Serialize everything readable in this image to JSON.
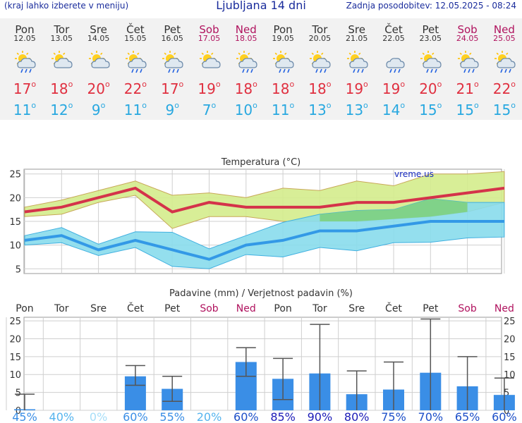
{
  "header": {
    "left": "(kraj lahko izberete v meniju)",
    "title": "Ljubljana 14 dni",
    "right": "Zadnja posodobitev: 12.05.2025 - 08:24"
  },
  "days": [
    {
      "name": "Pon",
      "date": "12.05",
      "weekend": false,
      "icon": "sun-cloud-rain",
      "tmax": "17",
      "tmin": "11"
    },
    {
      "name": "Tor",
      "date": "13.05",
      "weekend": false,
      "icon": "sun-cloud",
      "tmax": "18",
      "tmin": "12"
    },
    {
      "name": "Sre",
      "date": "14.05",
      "weekend": false,
      "icon": "sun-cloud",
      "tmax": "20",
      "tmin": "9"
    },
    {
      "name": "Čet",
      "date": "15.05",
      "weekend": false,
      "icon": "sun-cloud-rain",
      "tmax": "22",
      "tmin": "11"
    },
    {
      "name": "Pet",
      "date": "16.05",
      "weekend": false,
      "icon": "sun-cloud-rain",
      "tmax": "17",
      "tmin": "9"
    },
    {
      "name": "Sob",
      "date": "17.05",
      "weekend": true,
      "icon": "sun-cloud",
      "tmax": "19",
      "tmin": "7"
    },
    {
      "name": "Ned",
      "date": "18.05",
      "weekend": true,
      "icon": "sun-cloud-rain",
      "tmax": "18",
      "tmin": "10"
    },
    {
      "name": "Pon",
      "date": "19.05",
      "weekend": false,
      "icon": "sun-cloud-rain",
      "tmax": "18",
      "tmin": "11"
    },
    {
      "name": "Tor",
      "date": "20.05",
      "weekend": false,
      "icon": "sun-cloud-rain",
      "tmax": "18",
      "tmin": "13"
    },
    {
      "name": "Sre",
      "date": "21.05",
      "weekend": false,
      "icon": "sun-cloud-rain",
      "tmax": "19",
      "tmin": "13"
    },
    {
      "name": "Čet",
      "date": "22.05",
      "weekend": false,
      "icon": "cloud-rain",
      "tmax": "19",
      "tmin": "14"
    },
    {
      "name": "Pet",
      "date": "23.05",
      "weekend": false,
      "icon": "sun-cloud-rain",
      "tmax": "20",
      "tmin": "15"
    },
    {
      "name": "Sob",
      "date": "24.05",
      "weekend": true,
      "icon": "sun-cloud-rain",
      "tmax": "21",
      "tmin": "15"
    },
    {
      "name": "Ned",
      "date": "25.05",
      "weekend": true,
      "icon": "sun-cloud-rain",
      "tmax": "22",
      "tmin": "15"
    }
  ],
  "degree_symbol": "o",
  "colors": {
    "tmax": "#e03040",
    "tmin": "#28a8e0",
    "weekend": "#b0125e",
    "title": "#1a2c9c",
    "max_band": "#d4ec8c",
    "min_band": "#88dcec",
    "overlap_band": "#7ed07e",
    "bar": "#3a8ee6",
    "whisker": "#555555",
    "max_line": "#d4334a",
    "min_line": "#3399e6"
  },
  "chart_data": [
    {
      "type": "line",
      "title": "Temperatura (°C)",
      "watermark": "vreme.us",
      "categories": [
        "12.05",
        "13.05",
        "14.05",
        "15.05",
        "16.05",
        "17.05",
        "18.05",
        "19.05",
        "20.05",
        "21.05",
        "22.05",
        "23.05",
        "24.05",
        "25.05"
      ],
      "ylim": [
        4,
        26
      ],
      "yticks": [
        5,
        10,
        15,
        20,
        25
      ],
      "grid": true,
      "series": [
        {
          "values": [
            17,
            18,
            20,
            22,
            17,
            19,
            18,
            18,
            18,
            19,
            19,
            20,
            21,
            22
          ],
          "band_low": [
            16,
            16.5,
            19,
            20.5,
            13.5,
            16,
            16,
            15,
            15,
            15,
            15.5,
            16,
            17,
            19
          ],
          "band_high": [
            18,
            19.5,
            21.5,
            23.5,
            20.5,
            21,
            20,
            22,
            21.5,
            23.5,
            22.5,
            25,
            25,
            25.5
          ]
        },
        {
          "values": [
            11,
            12,
            9,
            11,
            9,
            7,
            10,
            11,
            13,
            13,
            14,
            15,
            15,
            15
          ],
          "band_low": [
            10,
            10.5,
            7.8,
            9.5,
            5.5,
            5,
            8,
            7.5,
            9.5,
            8.8,
            10.5,
            10.6,
            11.5,
            11.7
          ],
          "band_high": [
            12,
            13.7,
            10.2,
            12.8,
            12.7,
            9.2,
            12,
            14.8,
            16.5,
            17.3,
            17.5,
            19.8,
            19,
            19
          ]
        }
      ]
    },
    {
      "type": "bar",
      "title": "Padavine (mm) / Verjetnost padavin (%)",
      "categories": [
        "Pon",
        "Tor",
        "Sre",
        "Čet",
        "Pet",
        "Sob",
        "Ned",
        "Pon",
        "Tor",
        "Sre",
        "Čet",
        "Pet",
        "Sob",
        "Ned"
      ],
      "weekend": [
        false,
        false,
        false,
        false,
        false,
        true,
        true,
        false,
        false,
        false,
        false,
        false,
        true,
        true
      ],
      "ylim": [
        0,
        26
      ],
      "yticks": [
        0,
        5,
        10,
        15,
        20,
        25
      ],
      "values": [
        0.3,
        0,
        0,
        9.5,
        6,
        0,
        13.5,
        8.8,
        10.3,
        4.5,
        5.8,
        10.5,
        6.7,
        4.3
      ],
      "err_low": [
        0,
        0,
        0,
        7,
        2.5,
        0,
        9.5,
        3,
        0,
        0,
        0,
        0,
        0,
        0
      ],
      "err_high": [
        4.5,
        0,
        0,
        12.5,
        9.5,
        0,
        17.5,
        14.5,
        24,
        11,
        13.5,
        25.5,
        15,
        9
      ],
      "probability": [
        "45%",
        "40%",
        "0%",
        "60%",
        "55%",
        "20%",
        "60%",
        "85%",
        "90%",
        "80%",
        "75%",
        "70%",
        "65%",
        "60%"
      ],
      "prob_colors": [
        "#3a8ee6",
        "#55b4ee",
        "#a6def8",
        "#3a8ee6",
        "#3a8ee6",
        "#55b4ee",
        "#1c4fc9",
        "#1c1cb8",
        "#1c1cb8",
        "#1c1cb8",
        "#1c4fc9",
        "#1c4fc9",
        "#1c4fc9",
        "#1c4fc9"
      ]
    }
  ]
}
